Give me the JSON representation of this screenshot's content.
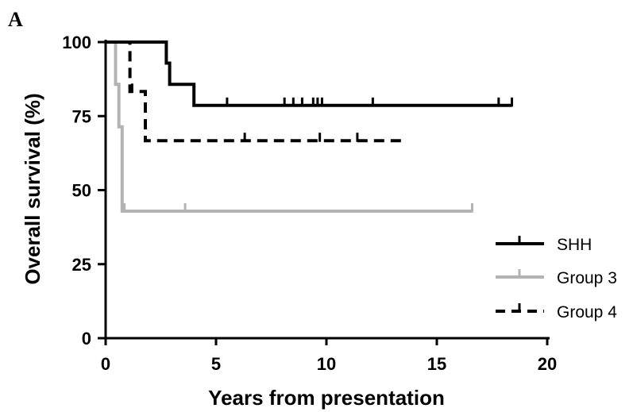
{
  "panel_label": "A",
  "chart_data": {
    "type": "line",
    "subtype": "kaplan-meier",
    "xlabel": "Years from presentation",
    "ylabel": "Overall survival (%)",
    "xlim": [
      0,
      20
    ],
    "ylim": [
      0,
      100
    ],
    "xticks": [
      0,
      5,
      10,
      15,
      20
    ],
    "yticks": [
      0,
      25,
      50,
      75,
      100
    ],
    "grid": false,
    "legend_position": "bottom-right",
    "series": [
      {
        "name": "SHH",
        "color": "#000000",
        "style": "solid",
        "steps": [
          [
            0,
            100
          ],
          [
            2.75,
            100
          ],
          [
            2.75,
            92.9
          ],
          [
            2.9,
            92.9
          ],
          [
            2.9,
            85.7
          ],
          [
            4.0,
            85.7
          ],
          [
            4.0,
            78.6
          ],
          [
            18.4,
            78.6
          ]
        ],
        "censor": [
          5.5,
          8.1,
          8.5,
          8.9,
          9.4,
          9.6,
          9.8,
          12.1,
          17.8,
          18.4
        ]
      },
      {
        "name": "Group 3",
        "color": "#b3b3b3",
        "style": "solid",
        "steps": [
          [
            0,
            100
          ],
          [
            0.45,
            100
          ],
          [
            0.45,
            85.7
          ],
          [
            0.6,
            85.7
          ],
          [
            0.6,
            71.4
          ],
          [
            0.75,
            71.4
          ],
          [
            0.75,
            42.9
          ],
          [
            16.6,
            42.9
          ]
        ],
        "censor": [
          0.85,
          3.6,
          16.6
        ]
      },
      {
        "name": "Group 4",
        "color": "#000000",
        "style": "dashed",
        "steps": [
          [
            0,
            100
          ],
          [
            1.1,
            100
          ],
          [
            1.1,
            83.3
          ],
          [
            1.8,
            83.3
          ],
          [
            1.8,
            66.7
          ],
          [
            13.5,
            66.7
          ]
        ],
        "censor": [
          1.2,
          6.3,
          9.7,
          11.4
        ]
      }
    ]
  }
}
